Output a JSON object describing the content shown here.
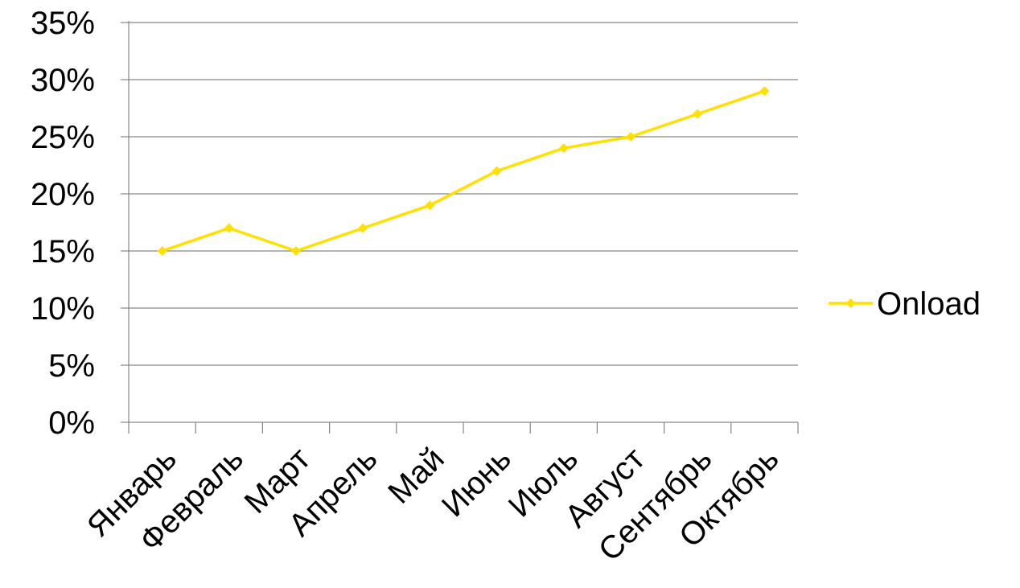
{
  "chart_data": {
    "type": "line",
    "categories": [
      "Январь",
      "Февраль",
      "Март",
      "Апрель",
      "Май",
      "Июнь",
      "Июль",
      "Август",
      "Сентябрь",
      "Октябрь"
    ],
    "series": [
      {
        "name": "Onload",
        "values": [
          15,
          17,
          15,
          17,
          19,
          22,
          24,
          25,
          27,
          29
        ],
        "color": "#FFE000"
      }
    ],
    "y_ticks": [
      "0%",
      "5%",
      "10%",
      "15%",
      "20%",
      "25%",
      "30%",
      "35%"
    ],
    "ylim": [
      0,
      35
    ],
    "y_unit": "percent",
    "grid": "horizontal",
    "legend_position": "right",
    "marker": "diamond"
  }
}
